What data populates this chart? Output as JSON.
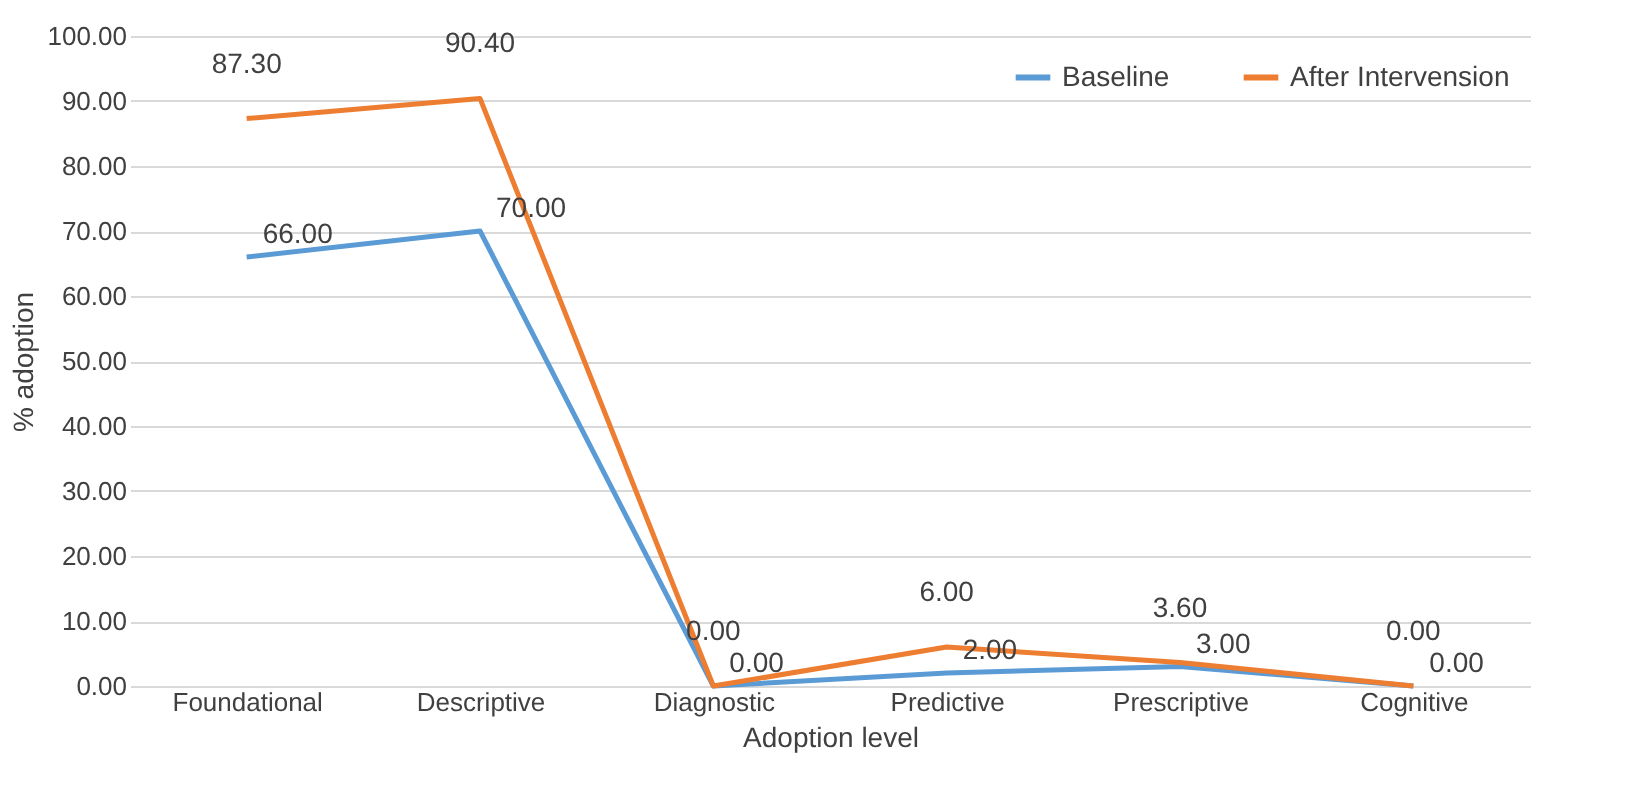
{
  "chart_data": {
    "type": "line",
    "xlabel": "Adoption level",
    "ylabel": "% adoption",
    "categories": [
      "Foundational",
      "Descriptive",
      "Diagnostic",
      "Predictive",
      "Prescriptive",
      "Cognitive"
    ],
    "series": [
      {
        "name": "Baseline",
        "color": "#5b9bd5",
        "values": [
          66.0,
          70.0,
          0.0,
          2.0,
          3.0,
          0.0
        ],
        "value_labels": [
          "66.00",
          "70.00",
          "0.00",
          "2.00",
          "3.00",
          "0.00"
        ]
      },
      {
        "name": "After Intervension",
        "color": "#ed7d31",
        "values": [
          87.3,
          90.4,
          0.0,
          6.0,
          3.6,
          0.0
        ],
        "value_labels": [
          "87.30",
          "90.40",
          "0.00",
          "6.00",
          "3.60",
          "0.00"
        ]
      }
    ],
    "ylim": [
      0,
      100
    ],
    "yticks": [
      {
        "value": 0,
        "label": "0.00"
      },
      {
        "value": 10,
        "label": "10.00"
      },
      {
        "value": 20,
        "label": "20.00"
      },
      {
        "value": 30,
        "label": "30.00"
      },
      {
        "value": 40,
        "label": "40.00"
      },
      {
        "value": 50,
        "label": "50.00"
      },
      {
        "value": 60,
        "label": "60.00"
      },
      {
        "value": 70,
        "label": "70.00"
      },
      {
        "value": 80,
        "label": "80.00"
      },
      {
        "value": 90,
        "label": "90.00"
      },
      {
        "value": 100,
        "label": "100.00"
      }
    ],
    "grid": "y",
    "legend": "top right",
    "marker": "none",
    "line_style": "solid"
  }
}
